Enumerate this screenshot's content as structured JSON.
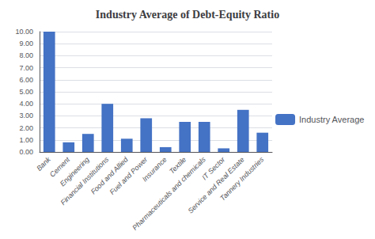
{
  "chart_data": {
    "type": "bar",
    "title": "Industry Average of Debt-Equity Ratio",
    "categories": [
      "Bank",
      "Cement",
      "Engineering",
      "Financial Institutions",
      "Food and Allied",
      "Fuel and Power",
      "Insurance",
      "Textile",
      "Pharmaceuticals and chemicals",
      "IT Sector",
      "Service and Real Estate",
      "Tannery Industries"
    ],
    "series": [
      {
        "name": "Industry Average",
        "color": "#4472C4",
        "values": [
          10.0,
          0.8,
          1.5,
          4.0,
          1.1,
          2.8,
          0.4,
          2.5,
          2.5,
          0.3,
          3.5,
          1.6
        ]
      }
    ],
    "ylim": [
      0,
      10.0
    ],
    "yticks": [
      {
        "value": 0,
        "label": "0.00"
      },
      {
        "value": 1,
        "label": "1.00"
      },
      {
        "value": 2,
        "label": "2.00"
      },
      {
        "value": 3,
        "label": "3.00"
      },
      {
        "value": 4,
        "label": "4.00"
      },
      {
        "value": 5,
        "label": "5.00"
      },
      {
        "value": 6,
        "label": "6.00"
      },
      {
        "value": 7,
        "label": "7.00"
      },
      {
        "value": 8,
        "label": "8.00"
      },
      {
        "value": 9,
        "label": "9.00"
      },
      {
        "value": 10,
        "label": "10.00"
      }
    ],
    "grid": true,
    "legend": "right"
  }
}
